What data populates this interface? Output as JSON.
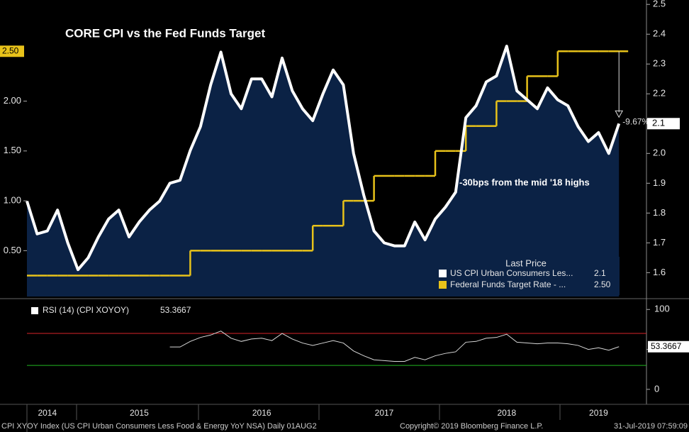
{
  "chart_data": [
    {
      "type": "line",
      "title": "CORE CPI vs the Fed Funds Target",
      "annotations": [
        "-30bps from the mid '18 highs",
        "-9.67%"
      ],
      "legend_title": "Last Price",
      "categories": [
        null,
        null,
        "2014",
        null,
        null,
        null,
        null,
        null,
        null,
        null,
        null,
        "2015",
        null,
        null,
        null,
        null,
        null,
        null,
        null,
        null,
        null,
        null,
        null,
        "2016",
        null,
        null,
        null,
        null,
        null,
        null,
        null,
        null,
        null,
        null,
        null,
        "2017",
        null,
        null,
        null,
        null,
        null,
        null,
        null,
        null,
        null,
        null,
        null,
        "2018",
        null,
        null,
        null,
        null,
        null,
        null,
        null,
        null,
        "2019",
        null,
        null
      ],
      "series": [
        {
          "name": "US CPI Urban Consumers Les...",
          "color": "#ffffff",
          "axis": "y2",
          "area_color": "#0b2245",
          "values": [
            1.84,
            1.73,
            1.74,
            1.81,
            1.7,
            1.61,
            1.65,
            1.72,
            1.78,
            1.81,
            1.72,
            1.77,
            1.81,
            1.84,
            1.9,
            1.91,
            2.01,
            2.09,
            2.23,
            2.34,
            2.2,
            2.15,
            2.25,
            2.25,
            2.19,
            2.32,
            2.21,
            2.15,
            2.11,
            2.2,
            2.28,
            2.23,
            2.0,
            1.86,
            1.74,
            1.7,
            1.69,
            1.69,
            1.77,
            1.71,
            1.78,
            1.82,
            1.87,
            2.12,
            2.16,
            2.24,
            2.26,
            2.36,
            2.21,
            2.18,
            2.15,
            2.22,
            2.18,
            2.16,
            2.09,
            2.04,
            2.07,
            2.0,
            2.1
          ]
        },
        {
          "name": "Federal Funds Target Rate - ...",
          "color": "#e8c21a",
          "axis": "y",
          "step": true,
          "values": [
            0.25,
            0.25,
            0.25,
            0.25,
            0.25,
            0.25,
            0.25,
            0.25,
            0.25,
            0.25,
            0.25,
            0.25,
            0.25,
            0.25,
            0.25,
            0.25,
            0.5,
            0.5,
            0.5,
            0.5,
            0.5,
            0.5,
            0.5,
            0.5,
            0.5,
            0.5,
            0.5,
            0.5,
            0.75,
            0.75,
            0.75,
            1.0,
            1.0,
            1.0,
            1.25,
            1.25,
            1.25,
            1.25,
            1.25,
            1.25,
            1.5,
            1.5,
            1.5,
            1.75,
            1.75,
            1.75,
            2.0,
            2.0,
            2.0,
            2.25,
            2.25,
            2.25,
            2.5,
            2.5,
            2.5,
            2.5,
            2.5,
            2.5,
            2.5
          ],
          "value_labels": [
            null,
            null,
            null,
            null,
            null,
            null,
            null,
            null,
            null,
            null,
            null,
            null,
            null,
            null,
            null,
            null,
            null,
            null,
            null,
            null,
            null,
            null,
            null,
            null,
            null,
            null,
            null,
            null,
            null,
            null,
            null,
            null,
            null,
            null,
            null,
            null,
            null,
            null,
            null,
            null,
            null,
            null,
            null,
            null,
            null,
            null,
            null,
            null,
            null,
            null,
            null,
            null,
            null,
            null,
            null,
            null,
            null,
            null,
            "2.50"
          ]
        }
      ],
      "ylim": [
        0.04,
        3.0
      ],
      "yticks": [
        {
          "value": 0.5,
          "label": "0.50"
        },
        {
          "value": 1.0,
          "label": "1.00"
        },
        {
          "value": 1.5,
          "label": "1.50"
        },
        {
          "value": 2.0,
          "label": "2.00"
        }
      ],
      "y2lim": [
        1.52,
        2.51
      ],
      "y2ticks": [
        1.6,
        1.7,
        1.8,
        1.9,
        {
          "value": 2.0,
          "label": "2.0"
        },
        2.1,
        2.2,
        2.3,
        2.4,
        2.5
      ]
    },
    {
      "type": "line",
      "series": [
        {
          "name": "RSI (14) (CPI XOYOY)",
          "color": "#d8d8d8",
          "values": [
            null,
            null,
            null,
            null,
            null,
            null,
            null,
            null,
            null,
            null,
            null,
            null,
            null,
            null,
            53,
            53,
            60,
            65,
            68,
            73,
            64,
            60,
            63,
            64,
            61,
            70,
            63,
            58,
            55,
            58,
            61,
            58,
            48,
            42,
            37,
            36,
            35,
            35,
            40,
            37,
            42,
            45,
            47,
            59,
            60,
            64,
            65,
            69,
            59,
            58,
            57,
            58,
            58,
            57,
            55,
            50,
            52,
            49,
            53.3667
          ]
        }
      ],
      "levels": [
        {
          "value": 70,
          "color": "#d8232a"
        },
        {
          "value": 30,
          "color": "#22b522"
        }
      ],
      "ylim": [
        -17,
        110
      ],
      "yticks": [
        0,
        50,
        100
      ]
    }
  ],
  "footer": [
    "CPI XYOY Index (US CPI Urban Consumers Less Food & Energy YoY NSA)  Daily 01AUG2",
    "Copyright© 2019 Bloomberg Finance L.P.",
    "31-Jul-2019 07:59:09"
  ]
}
